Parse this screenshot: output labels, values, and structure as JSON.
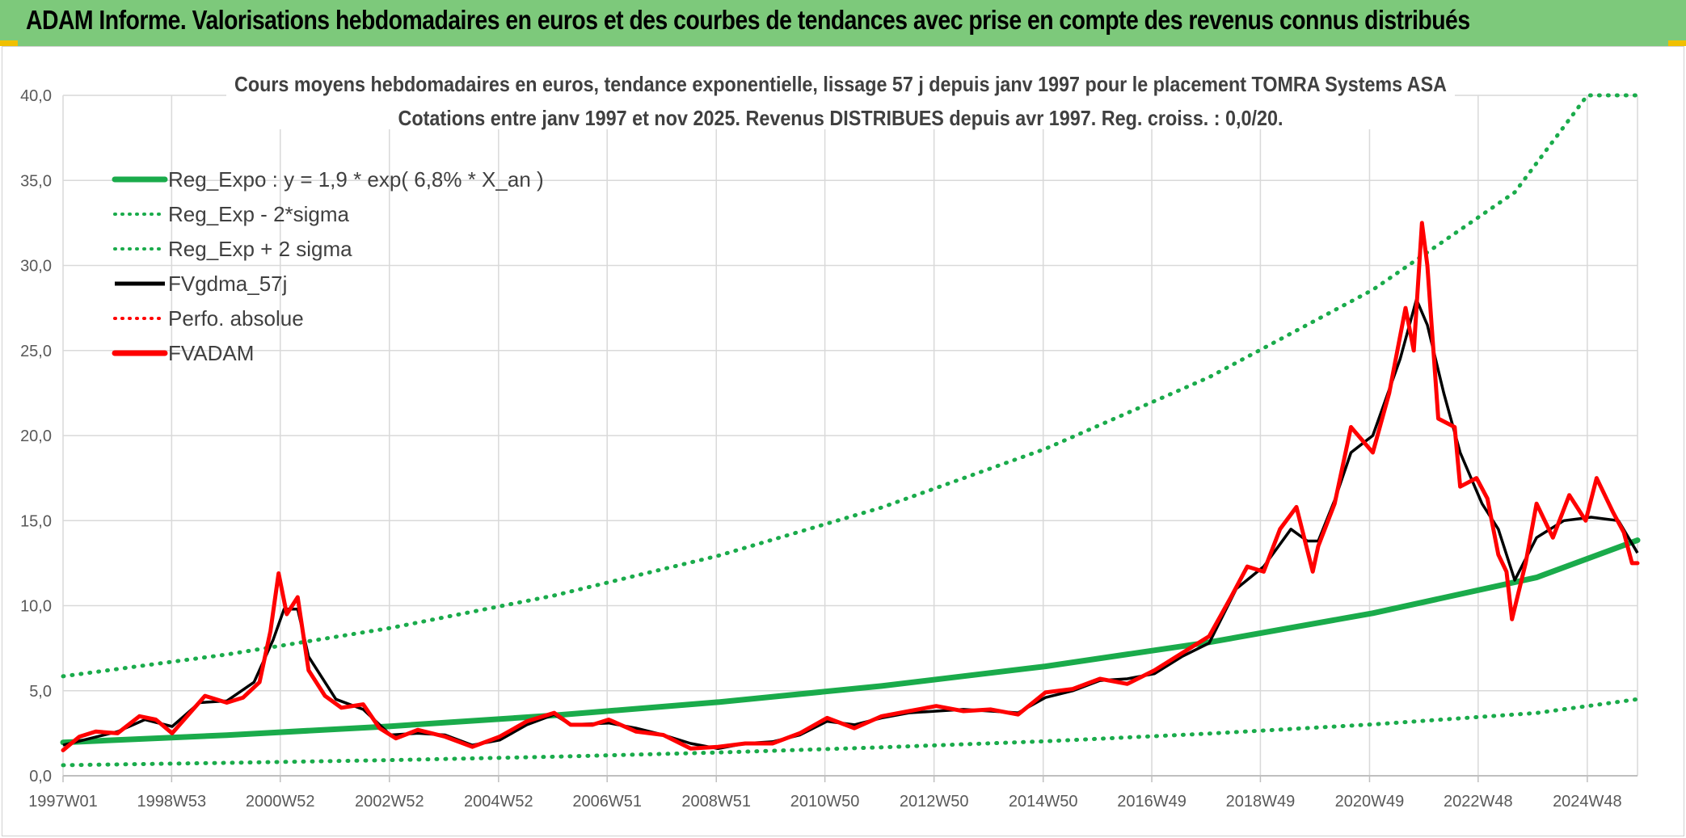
{
  "banner": {
    "title": "ADAM Informe. Valorisations hebdomadaires en euros et des courbes de tendances avec prise en compte des revenus connus distribués"
  },
  "colors": {
    "banner_bg": "#7dc97b",
    "trend_green": "#1aab4b",
    "fvgdma_black": "#000000",
    "fvadam_red": "#ff0000",
    "perfo_red": "#ff0000",
    "grid": "#d9d9d9"
  },
  "chart_data": {
    "type": "line",
    "title": "Cours moyens hebdomadaires en euros, tendance exponentielle, lissage 57 j depuis janv 1997 pour le placement TOMRA Systems ASA",
    "subtitle": "Cotations entre janv 1997 et nov 2025. Revenus DISTRIBUES depuis avr 1997. Reg. croiss. : 0,0/20.",
    "xlabel": "",
    "ylabel": "",
    "ylim": [
      0,
      40
    ],
    "xlim": [
      1997.0,
      2025.85
    ],
    "grid": true,
    "legend_position": "top-left",
    "y_ticks": [
      "0,0",
      "5,0",
      "10,0",
      "15,0",
      "20,0",
      "25,0",
      "30,0",
      "35,0",
      "40,0"
    ],
    "x_ticks": [
      {
        "x": 1997.0,
        "label": "1997W01"
      },
      {
        "x": 1998.99,
        "label": "1998W53"
      },
      {
        "x": 2000.98,
        "label": "2000W52"
      },
      {
        "x": 2002.98,
        "label": "2002W52"
      },
      {
        "x": 2004.98,
        "label": "2004W52"
      },
      {
        "x": 2006.97,
        "label": "2006W51"
      },
      {
        "x": 2008.97,
        "label": "2008W51"
      },
      {
        "x": 2010.96,
        "label": "2010W50"
      },
      {
        "x": 2012.96,
        "label": "2012W50"
      },
      {
        "x": 2014.96,
        "label": "2014W50"
      },
      {
        "x": 2016.95,
        "label": "2016W49"
      },
      {
        "x": 2018.94,
        "label": "2018W49"
      },
      {
        "x": 2020.94,
        "label": "2020W49"
      },
      {
        "x": 2022.93,
        "label": "2022W48"
      },
      {
        "x": 2024.93,
        "label": "2024W48"
      }
    ],
    "series": [
      {
        "name": "Reg_Expo : y = 1,9 * exp( 6,8% *  X_an )",
        "style": "solid-thick",
        "color": "#1aab4b",
        "points": [
          [
            1997.0,
            1.96
          ],
          [
            2000.0,
            2.39
          ],
          [
            2003.0,
            2.91
          ],
          [
            2006.0,
            3.55
          ],
          [
            2009.0,
            4.33
          ],
          [
            2012.0,
            5.28
          ],
          [
            2015.0,
            6.43
          ],
          [
            2018.0,
            7.85
          ],
          [
            2021.0,
            9.56
          ],
          [
            2024.0,
            11.66
          ],
          [
            2025.85,
            13.85
          ]
        ]
      },
      {
        "name": "Reg_Exp - 2*sigma",
        "style": "dotted",
        "color": "#1aab4b",
        "points": [
          [
            1997.0,
            0.62
          ],
          [
            2000.0,
            0.76
          ],
          [
            2003.0,
            0.92
          ],
          [
            2006.0,
            1.12
          ],
          [
            2009.0,
            1.37
          ],
          [
            2012.0,
            1.67
          ],
          [
            2015.0,
            2.03
          ],
          [
            2018.0,
            2.48
          ],
          [
            2021.0,
            3.02
          ],
          [
            2024.0,
            3.69
          ],
          [
            2025.85,
            4.5
          ]
        ]
      },
      {
        "name": "Reg_Exp + 2 sigma",
        "style": "dotted",
        "color": "#1aab4b",
        "points": [
          [
            1997.0,
            5.85
          ],
          [
            2000.0,
            7.13
          ],
          [
            2003.0,
            8.69
          ],
          [
            2006.0,
            10.6
          ],
          [
            2009.0,
            12.93
          ],
          [
            2012.0,
            15.77
          ],
          [
            2015.0,
            19.22
          ],
          [
            2018.0,
            23.43
          ],
          [
            2021.0,
            28.57
          ],
          [
            2023.6,
            34.3
          ],
          [
            2024.93,
            40.0
          ],
          [
            2025.85,
            40.0
          ]
        ]
      },
      {
        "name": "FVgdma_57j",
        "style": "solid",
        "color": "#000000",
        "points": [
          [
            1997.0,
            1.8
          ],
          [
            1997.5,
            2.2
          ],
          [
            1998.0,
            2.6
          ],
          [
            1998.5,
            3.3
          ],
          [
            1999.0,
            2.9
          ],
          [
            1999.5,
            4.3
          ],
          [
            2000.0,
            4.4
          ],
          [
            2000.5,
            5.5
          ],
          [
            2000.85,
            8.0
          ],
          [
            2001.05,
            9.8
          ],
          [
            2001.3,
            9.8
          ],
          [
            2001.5,
            7.0
          ],
          [
            2002.0,
            4.5
          ],
          [
            2002.5,
            3.9
          ],
          [
            2003.0,
            2.4
          ],
          [
            2003.5,
            2.5
          ],
          [
            2004.0,
            2.4
          ],
          [
            2004.5,
            1.8
          ],
          [
            2005.0,
            2.1
          ],
          [
            2005.5,
            3.0
          ],
          [
            2006.0,
            3.6
          ],
          [
            2006.3,
            3.0
          ],
          [
            2007.0,
            3.1
          ],
          [
            2007.5,
            2.8
          ],
          [
            2008.0,
            2.4
          ],
          [
            2008.5,
            1.9
          ],
          [
            2009.0,
            1.6
          ],
          [
            2009.5,
            1.9
          ],
          [
            2010.0,
            2.0
          ],
          [
            2010.5,
            2.4
          ],
          [
            2011.0,
            3.2
          ],
          [
            2011.5,
            3.0
          ],
          [
            2012.0,
            3.4
          ],
          [
            2012.5,
            3.7
          ],
          [
            2013.0,
            3.8
          ],
          [
            2013.5,
            3.9
          ],
          [
            2014.0,
            3.8
          ],
          [
            2014.5,
            3.7
          ],
          [
            2015.0,
            4.6
          ],
          [
            2015.5,
            5.0
          ],
          [
            2016.0,
            5.6
          ],
          [
            2016.5,
            5.7
          ],
          [
            2017.0,
            6.0
          ],
          [
            2017.5,
            7.0
          ],
          [
            2018.0,
            7.8
          ],
          [
            2018.5,
            11.0
          ],
          [
            2019.0,
            12.3
          ],
          [
            2019.5,
            14.5
          ],
          [
            2019.8,
            13.8
          ],
          [
            2020.0,
            13.8
          ],
          [
            2020.3,
            16.2
          ],
          [
            2020.6,
            19.0
          ],
          [
            2021.0,
            20.0
          ],
          [
            2021.5,
            24.5
          ],
          [
            2021.8,
            28.0
          ],
          [
            2022.0,
            26.5
          ],
          [
            2022.3,
            22.5
          ],
          [
            2022.6,
            19.0
          ],
          [
            2023.0,
            16.0
          ],
          [
            2023.3,
            14.5
          ],
          [
            2023.6,
            11.5
          ],
          [
            2024.0,
            14.0
          ],
          [
            2024.5,
            15.0
          ],
          [
            2025.0,
            15.2
          ],
          [
            2025.5,
            15.0
          ],
          [
            2025.85,
            13.1
          ]
        ]
      },
      {
        "name": "Perfo. absolue",
        "style": "dotted",
        "color": "#ff0000",
        "points": []
      },
      {
        "name": "FVADAM",
        "style": "solid-thick",
        "color": "#ff0000",
        "points": [
          [
            1997.0,
            1.5
          ],
          [
            1997.3,
            2.3
          ],
          [
            1997.6,
            2.6
          ],
          [
            1998.0,
            2.5
          ],
          [
            1998.4,
            3.5
          ],
          [
            1998.7,
            3.3
          ],
          [
            1999.0,
            2.5
          ],
          [
            1999.3,
            3.6
          ],
          [
            1999.6,
            4.7
          ],
          [
            2000.0,
            4.3
          ],
          [
            2000.3,
            4.6
          ],
          [
            2000.6,
            5.5
          ],
          [
            2000.8,
            8.5
          ],
          [
            2000.95,
            11.9
          ],
          [
            2001.1,
            9.5
          ],
          [
            2001.3,
            10.5
          ],
          [
            2001.5,
            6.2
          ],
          [
            2001.8,
            4.7
          ],
          [
            2002.1,
            4.0
          ],
          [
            2002.5,
            4.2
          ],
          [
            2002.8,
            2.8
          ],
          [
            2003.1,
            2.2
          ],
          [
            2003.5,
            2.7
          ],
          [
            2004.0,
            2.3
          ],
          [
            2004.5,
            1.7
          ],
          [
            2005.0,
            2.3
          ],
          [
            2005.5,
            3.2
          ],
          [
            2006.0,
            3.7
          ],
          [
            2006.3,
            3.0
          ],
          [
            2006.7,
            3.0
          ],
          [
            2007.0,
            3.3
          ],
          [
            2007.5,
            2.6
          ],
          [
            2008.0,
            2.4
          ],
          [
            2008.5,
            1.6
          ],
          [
            2009.0,
            1.7
          ],
          [
            2009.5,
            1.9
          ],
          [
            2010.0,
            1.9
          ],
          [
            2010.5,
            2.5
          ],
          [
            2011.0,
            3.4
          ],
          [
            2011.5,
            2.8
          ],
          [
            2012.0,
            3.5
          ],
          [
            2012.5,
            3.8
          ],
          [
            2013.0,
            4.1
          ],
          [
            2013.5,
            3.8
          ],
          [
            2014.0,
            3.9
          ],
          [
            2014.5,
            3.6
          ],
          [
            2015.0,
            4.9
          ],
          [
            2015.5,
            5.1
          ],
          [
            2016.0,
            5.7
          ],
          [
            2016.5,
            5.4
          ],
          [
            2017.0,
            6.2
          ],
          [
            2017.5,
            7.2
          ],
          [
            2018.0,
            8.2
          ],
          [
            2018.4,
            10.5
          ],
          [
            2018.7,
            12.3
          ],
          [
            2019.0,
            12.0
          ],
          [
            2019.3,
            14.5
          ],
          [
            2019.6,
            15.8
          ],
          [
            2019.9,
            12.0
          ],
          [
            2020.0,
            13.5
          ],
          [
            2020.3,
            16.0
          ],
          [
            2020.6,
            20.5
          ],
          [
            2021.0,
            19.0
          ],
          [
            2021.3,
            22.5
          ],
          [
            2021.6,
            27.5
          ],
          [
            2021.75,
            25.0
          ],
          [
            2021.9,
            32.5
          ],
          [
            2022.0,
            30.0
          ],
          [
            2022.2,
            21.0
          ],
          [
            2022.5,
            20.5
          ],
          [
            2022.6,
            17.0
          ],
          [
            2022.9,
            17.5
          ],
          [
            2023.1,
            16.3
          ],
          [
            2023.3,
            13.0
          ],
          [
            2023.45,
            12.0
          ],
          [
            2023.55,
            9.2
          ],
          [
            2023.8,
            12.5
          ],
          [
            2024.0,
            16.0
          ],
          [
            2024.3,
            14.0
          ],
          [
            2024.6,
            16.5
          ],
          [
            2024.9,
            15.0
          ],
          [
            2025.1,
            17.5
          ],
          [
            2025.4,
            15.5
          ],
          [
            2025.6,
            14.3
          ],
          [
            2025.75,
            12.5
          ],
          [
            2025.85,
            12.5
          ]
        ]
      }
    ]
  }
}
